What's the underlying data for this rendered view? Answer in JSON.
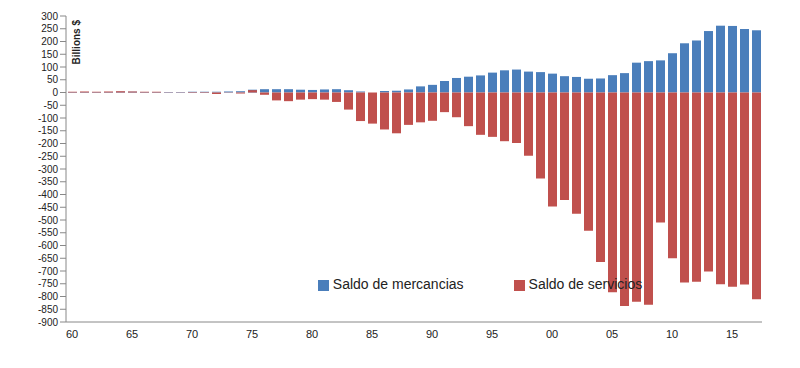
{
  "chart_data": {
    "type": "bar",
    "y_label": "Billions $",
    "categories": [
      "60",
      null,
      null,
      null,
      null,
      "65",
      null,
      null,
      null,
      null,
      "70",
      null,
      null,
      null,
      null,
      "75",
      null,
      null,
      null,
      null,
      "80",
      null,
      null,
      null,
      null,
      "85",
      null,
      null,
      null,
      null,
      "90",
      null,
      null,
      null,
      null,
      "95",
      null,
      null,
      null,
      null,
      "00",
      null,
      null,
      null,
      null,
      "05",
      null,
      null,
      null,
      null,
      "10",
      null,
      null,
      null,
      null,
      "15",
      null,
      null
    ],
    "series": [
      {
        "name": "Saldo de mercancias",
        "color": "#4a7ebb",
        "values": [
          2,
          2,
          2,
          2,
          3,
          3,
          2,
          2,
          2,
          2,
          3,
          3,
          3,
          4,
          5,
          11,
          13,
          13,
          13,
          11,
          10,
          12,
          13,
          9,
          4,
          0,
          6,
          7,
          12,
          24,
          30,
          45,
          57,
          62,
          67,
          78,
          87,
          90,
          82,
          80,
          74,
          64,
          61,
          54,
          55,
          68,
          76,
          117,
          123,
          126,
          154,
          193,
          204,
          241,
          262,
          261,
          249,
          244
        ]
      },
      {
        "name": "Saldo de servicios",
        "color": "#c0504d",
        "values": [
          3,
          4,
          3,
          4,
          5,
          4,
          3,
          3,
          1,
          1,
          2,
          -2,
          -6,
          1,
          -4,
          9,
          -9,
          -31,
          -34,
          -28,
          -26,
          -28,
          -37,
          -67,
          -112,
          -122,
          -145,
          -160,
          -127,
          -117,
          -111,
          -77,
          -97,
          -132,
          -166,
          -174,
          -191,
          -198,
          -248,
          -337,
          -447,
          -422,
          -475,
          -542,
          -665,
          -783,
          -837,
          -821,
          -832,
          -510,
          -650,
          -745,
          -742,
          -702,
          -752,
          -762,
          -753,
          -811
        ]
      }
    ],
    "ylim": [
      -900,
      300
    ],
    "yticks": [
      -900,
      -850,
      -800,
      -750,
      -700,
      -650,
      -600,
      -550,
      -500,
      -450,
      -400,
      -350,
      -300,
      -250,
      -200,
      -150,
      -100,
      -50,
      0,
      50,
      100,
      150,
      200,
      250,
      300
    ],
    "legend": "lower left",
    "grid": false
  }
}
